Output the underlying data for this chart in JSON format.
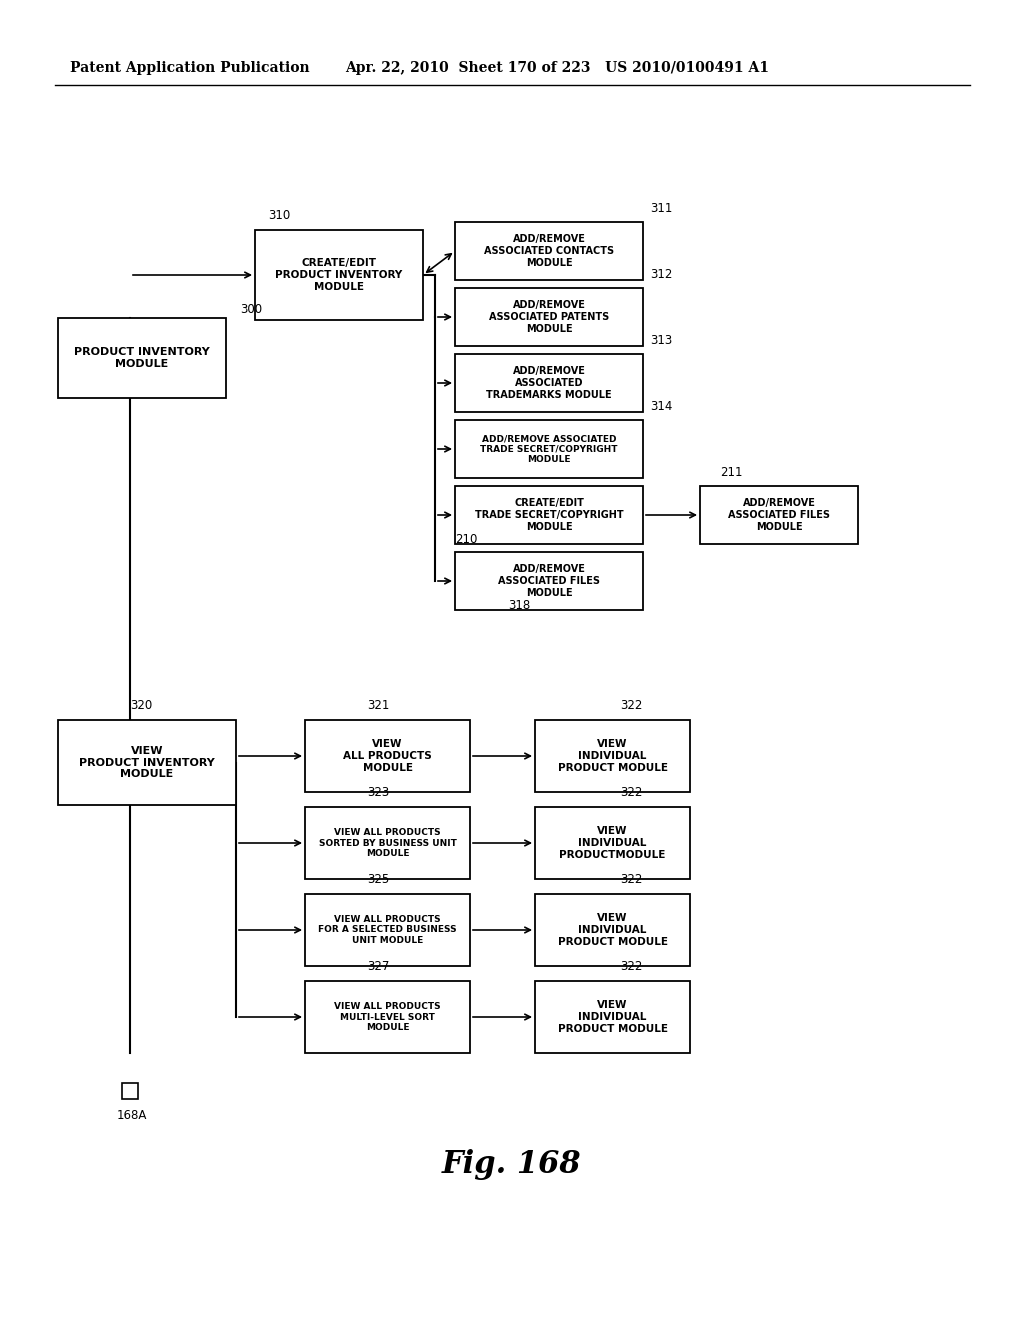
{
  "header_left": "Patent Application Publication",
  "header_right": "Apr. 22, 2010  Sheet 170 of 223   US 2010/0100491 A1",
  "figure_label": "Fig. 168",
  "footer_label": "168A",
  "bg": "#ffffff"
}
